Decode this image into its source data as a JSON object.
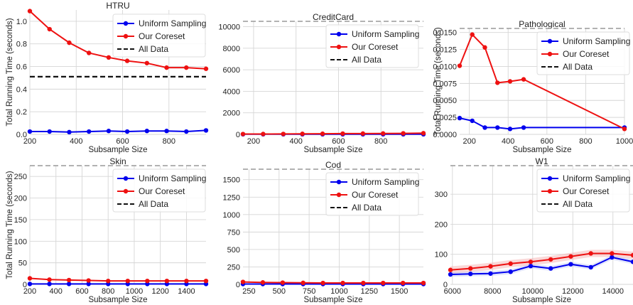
{
  "legend_labels": {
    "uniform": "Uniform Sampling",
    "coreset": "Our Coreset",
    "all": "All Data"
  },
  "colors": {
    "uniform": "#0000ee",
    "coreset": "#ee1111",
    "all": "#111111",
    "grid": "#d6d6d6",
    "band_coreset": "#f4a9a9",
    "band_uniform": "#a9b4f4"
  },
  "chart_data": [
    {
      "type": "line",
      "title": "HTRU",
      "xlabel": "Subsample Size",
      "ylabel": "Total Running Time (seconds)",
      "xlim": [
        200,
        960
      ],
      "ylim": [
        0,
        1.1
      ],
      "xticks": [
        "200",
        "400",
        "600",
        "800"
      ],
      "yticks": [
        "0.0",
        "0.2",
        "0.4",
        "0.6",
        "0.8",
        "1.0"
      ],
      "legend": "top-right",
      "all_data": 0.51,
      "series": [
        {
          "name": "Uniform Sampling",
          "x": [
            200,
            285,
            370,
            455,
            540,
            620,
            705,
            790,
            875,
            960
          ],
          "y": [
            0.025,
            0.025,
            0.02,
            0.025,
            0.03,
            0.025,
            0.03,
            0.03,
            0.025,
            0.035
          ]
        },
        {
          "name": "Our Coreset",
          "x": [
            200,
            285,
            370,
            455,
            540,
            620,
            705,
            790,
            875,
            960
          ],
          "y": [
            1.09,
            0.93,
            0.81,
            0.72,
            0.68,
            0.65,
            0.63,
            0.59,
            0.59,
            0.58
          ]
        }
      ]
    },
    {
      "type": "line",
      "title": "CreditCard",
      "xlabel": "Subsample Size",
      "ylabel": "",
      "xlim": [
        150,
        1000
      ],
      "ylim": [
        0,
        10500
      ],
      "xticks": [
        "200",
        "400",
        "600",
        "800"
      ],
      "yticks": [
        "0",
        "2000",
        "4000",
        "6000",
        "8000",
        "10000"
      ],
      "legend": "top-right",
      "all_data": 10500,
      "series": [
        {
          "name": "Uniform Sampling",
          "x": [
            150,
            245,
            340,
            430,
            525,
            620,
            715,
            810,
            905,
            1000
          ],
          "y": [
            10,
            10,
            10,
            10,
            10,
            10,
            10,
            10,
            10,
            10
          ]
        },
        {
          "name": "Our Coreset",
          "x": [
            150,
            245,
            340,
            430,
            525,
            620,
            715,
            810,
            905,
            1000
          ],
          "y": [
            30,
            35,
            40,
            50,
            60,
            70,
            75,
            85,
            95,
            110
          ]
        }
      ]
    },
    {
      "type": "line",
      "title": "Pathological",
      "xlabel": "Subsample Size",
      "ylabel": "Total Running Time (seconds)",
      "xlim": [
        150,
        1000
      ],
      "ylim": [
        0,
        0.0156
      ],
      "xticks": [
        "200",
        "400",
        "600",
        "800",
        "1000"
      ],
      "yticks": [
        "0.0000",
        "0.0025",
        "0.0050",
        "0.0075",
        "0.0100",
        "0.0125",
        "0.0150"
      ],
      "legend": "top-right",
      "all_data": 0.0156,
      "series": [
        {
          "name": "Uniform Sampling",
          "x": [
            150,
            215,
            280,
            345,
            410,
            480,
            1000
          ],
          "y": [
            0.0024,
            0.002,
            0.001,
            0.001,
            0.0008,
            0.001,
            0.001
          ]
        },
        {
          "name": "Our Coreset",
          "x": [
            150,
            215,
            280,
            345,
            410,
            480,
            1000
          ],
          "y": [
            0.0101,
            0.0147,
            0.0128,
            0.0076,
            0.0078,
            0.0081,
            0.0008
          ]
        }
      ]
    },
    {
      "type": "line",
      "title": "Skin",
      "xlabel": "Subsample Size",
      "ylabel": "Total Running Time (seconds)",
      "xlim": [
        200,
        1550
      ],
      "ylim": [
        0,
        275
      ],
      "xticks": [
        "200",
        "400",
        "600",
        "800",
        "1000",
        "1200",
        "1400"
      ],
      "yticks": [
        "0",
        "50",
        "100",
        "150",
        "200",
        "250"
      ],
      "legend": "top-right",
      "all_data": 275,
      "series": [
        {
          "name": "Uniform Sampling",
          "x": [
            200,
            350,
            500,
            650,
            800,
            950,
            1100,
            1250,
            1400,
            1550
          ],
          "y": [
            1,
            1,
            1,
            1,
            1,
            1,
            1,
            1,
            1,
            1
          ]
        },
        {
          "name": "Our Coreset",
          "x": [
            200,
            350,
            500,
            650,
            800,
            950,
            1100,
            1250,
            1400,
            1550
          ],
          "y": [
            14,
            11,
            10,
            9,
            8,
            8,
            8,
            8,
            8,
            8
          ]
        }
      ]
    },
    {
      "type": "line",
      "title": "Cod",
      "xlabel": "Subsample Size",
      "ylabel": "",
      "xlim": [
        200,
        1700
      ],
      "ylim": [
        0,
        1650
      ],
      "xticks": [
        "250",
        "500",
        "750",
        "1000",
        "1250",
        "1500"
      ],
      "yticks": [
        "0",
        "250",
        "500",
        "750",
        "1000",
        "1250",
        "1500"
      ],
      "legend": "top-right",
      "all_data": 1650,
      "series": [
        {
          "name": "Uniform Sampling",
          "x": [
            200,
            365,
            530,
            700,
            865,
            1030,
            1200,
            1365,
            1530,
            1700
          ],
          "y": [
            5,
            5,
            5,
            5,
            5,
            5,
            5,
            5,
            5,
            5
          ]
        },
        {
          "name": "Our Coreset",
          "x": [
            200,
            365,
            530,
            700,
            865,
            1030,
            1200,
            1365,
            1530,
            1700
          ],
          "y": [
            35,
            28,
            25,
            22,
            20,
            20,
            20,
            20,
            20,
            20
          ]
        }
      ]
    },
    {
      "type": "line",
      "title": "W1",
      "xlabel": "Subsample Size",
      "ylabel": "",
      "xlim": [
        5900,
        15000
      ],
      "ylim": [
        0,
        395
      ],
      "xticks": [
        "6000",
        "8000",
        "10000",
        "12000",
        "14000"
      ],
      "yticks": [
        "0",
        "100",
        "200",
        "300"
      ],
      "legend": "top-right",
      "all_data": 395,
      "series": [
        {
          "name": "Uniform Sampling",
          "x": [
            5900,
            6900,
            7900,
            8900,
            9900,
            10900,
            11900,
            12900,
            13950,
            15000
          ],
          "y": [
            33,
            35,
            36,
            42,
            61,
            53,
            67,
            57,
            90,
            75
          ]
        },
        {
          "name": "Our Coreset",
          "x": [
            5900,
            6900,
            7900,
            8900,
            9900,
            10900,
            11900,
            12900,
            13950,
            15000
          ],
          "y": [
            48,
            53,
            60,
            69,
            75,
            83,
            93,
            103,
            103,
            97
          ]
        }
      ]
    }
  ]
}
